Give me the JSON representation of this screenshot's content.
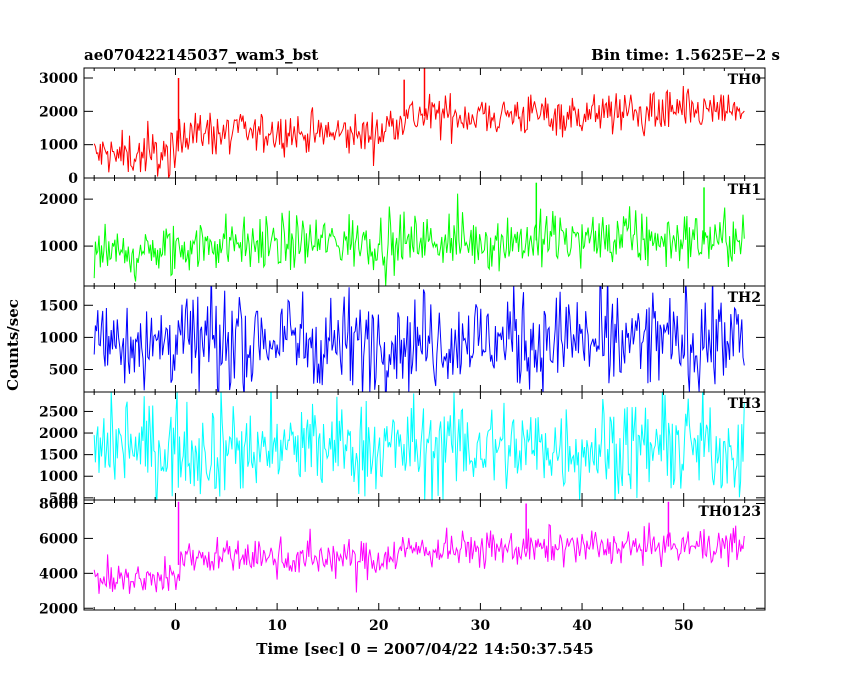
{
  "header": {
    "left_title": "ae070422145037_wam3_bst",
    "right_title": "Bin time: 1.5625E−2 s"
  },
  "chart_data": {
    "type": "line",
    "xlabel": "Time [sec] 0 = 2007/04/22 14:50:37.545",
    "ylabel": "Counts/sec",
    "xlim": [
      -9,
      58
    ],
    "x_ticks": [
      0,
      10,
      20,
      30,
      40,
      50
    ],
    "x_tick_labels": [
      "0",
      "10",
      "20",
      "30",
      "40",
      "50"
    ],
    "data_range": [
      -8,
      56
    ],
    "panels": [
      {
        "name": "TH0",
        "color": "#ff0000",
        "ylim": [
          0,
          3300
        ],
        "ticks": [
          0,
          1000,
          2000,
          3000
        ],
        "tick_labels": [
          "0",
          "1000",
          "2000",
          "3000"
        ],
        "trend": [
          [
            -8,
            700
          ],
          [
            0,
            700
          ],
          [
            0.5,
            1500
          ],
          [
            2,
            1350
          ],
          [
            20,
            1300
          ],
          [
            22,
            1850
          ],
          [
            56,
            2000
          ]
        ],
        "noise": 330,
        "spikes": [
          [
            24.5,
            3350
          ],
          [
            0.3,
            3000
          ],
          [
            22.5,
            2950
          ]
        ]
      },
      {
        "name": "TH1",
        "color": "#00ff00",
        "ylim": [
          150,
          2450
        ],
        "ticks": [
          1000,
          2000
        ],
        "tick_labels": [
          "1000",
          "2000"
        ],
        "trend": [
          [
            -8,
            800
          ],
          [
            0,
            850
          ],
          [
            2,
            1050
          ],
          [
            20,
            1100
          ],
          [
            56,
            1150
          ]
        ],
        "noise": 300,
        "spikes": [
          [
            35.5,
            2350
          ],
          [
            52,
            2250
          ]
        ]
      },
      {
        "name": "TH2",
        "color": "#0000ff",
        "ylim": [
          150,
          1800
        ],
        "ticks": [
          500,
          1000,
          1500
        ],
        "tick_labels": [
          "500",
          "1000",
          "1500"
        ],
        "trend": [
          [
            -8,
            950
          ],
          [
            56,
            960
          ]
        ],
        "noise": 380,
        "spikes": []
      },
      {
        "name": "TH3",
        "color": "#00ffff",
        "ylim": [
          450,
          2950
        ],
        "ticks": [
          500,
          1000,
          1500,
          2000,
          2500
        ],
        "tick_labels": [
          "500",
          "1000",
          "1500",
          "2000",
          "2500"
        ],
        "trend": [
          [
            -8,
            1650
          ],
          [
            56,
            1680
          ]
        ],
        "noise": 560,
        "spikes": []
      },
      {
        "name": "TH0123",
        "color": "#ff00ff",
        "ylim": [
          1900,
          8200
        ],
        "ticks": [
          2000,
          4000,
          6000,
          8000
        ],
        "tick_labels": [
          "2000",
          "4000",
          "6000",
          "8000"
        ],
        "trend": [
          [
            -8,
            3600
          ],
          [
            0,
            3700
          ],
          [
            0.5,
            5000
          ],
          [
            20,
            4800
          ],
          [
            22,
            5300
          ],
          [
            56,
            5600
          ]
        ],
        "noise": 520,
        "spikes": [
          [
            34.5,
            8000
          ],
          [
            0.3,
            8100
          ],
          [
            48.5,
            8100
          ]
        ]
      }
    ]
  }
}
